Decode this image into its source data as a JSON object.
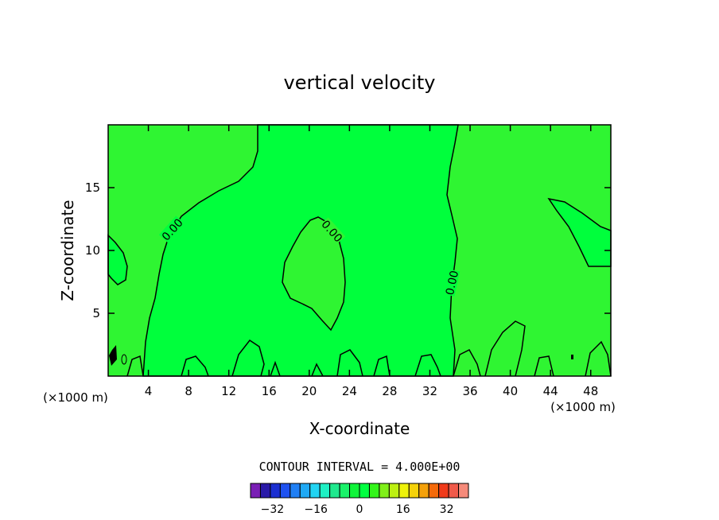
{
  "chart_data": {
    "type": "contour",
    "title": "vertical velocity",
    "xlabel": "X-coordinate",
    "ylabel": "Z-coordinate",
    "x_unit_left": "(×1000 m)",
    "x_unit_right": "(×1000 m)",
    "xlim": [
      0,
      50
    ],
    "ylim": [
      0,
      20
    ],
    "x_ticks": [
      4,
      8,
      12,
      16,
      20,
      24,
      28,
      32,
      36,
      40,
      44,
      48
    ],
    "y_ticks": [
      5,
      10,
      15
    ],
    "contour_labels": [
      "0.00",
      "0.00",
      "0.00"
    ],
    "contour_interval_text": "CONTOUR INTERVAL = 4.000E+00",
    "colorbar": {
      "tick_labels": [
        "−32",
        "−16",
        "0",
        "16",
        "32"
      ],
      "tick_values": [
        -32,
        -16,
        0,
        16,
        32
      ],
      "range": [
        -40,
        40
      ],
      "interval": 4,
      "colors": [
        "#7a1fb5",
        "#2a1aa8",
        "#1b2fd1",
        "#1f52f0",
        "#1f7ff5",
        "#1fa9f5",
        "#22d4f2",
        "#1ff0c4",
        "#1fe98e",
        "#1af26a",
        "#0ff53a",
        "#00ff40",
        "#33f51a",
        "#80f01a",
        "#bdf012",
        "#eef20a",
        "#f5d20a",
        "#f5a10a",
        "#f56a0a",
        "#f03a1a",
        "#f05a4a",
        "#f58a7a"
      ]
    }
  }
}
